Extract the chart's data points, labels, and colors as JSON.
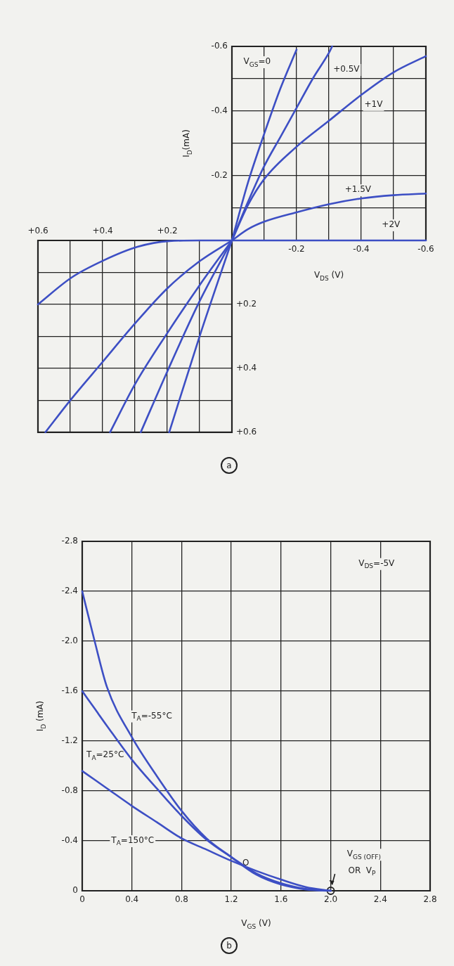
{
  "chart_data": [
    {
      "type": "line",
      "xlabel": "V$_{DS}$ (V)",
      "ylabel": "I$_{D}$(mA)",
      "xlim": [
        0,
        -0.6
      ],
      "ylim": [
        0,
        -0.6
      ],
      "xticks": [
        {
          "value": 0,
          "label": null
        },
        {
          "value": -0.1,
          "label": null
        },
        -0.2,
        {
          "value": -0.3,
          "label": null
        },
        -0.4,
        {
          "value": -0.5,
          "label": null
        },
        -0.6
      ],
      "yticks": [
        {
          "value": 0,
          "label": null
        },
        {
          "value": -0.1,
          "label": null
        },
        -0.2,
        {
          "value": -0.3,
          "label": null
        },
        -0.4,
        {
          "value": -0.5,
          "label": null
        },
        -0.6
      ],
      "grid": true,
      "legend": false,
      "marker": "none",
      "line_style": "solid",
      "series": [
        {
          "name": "V$_{GS}$=0",
          "color": "#3d4fc4",
          "x": [
            0,
            -0.05,
            -0.1,
            -0.15,
            -0.2
          ],
          "values": [
            0,
            -0.18,
            -0.33,
            -0.47,
            -0.59
          ]
        },
        {
          "name": "+0.5V",
          "color": "#3d4fc4",
          "x": [
            0,
            -0.05,
            -0.1,
            -0.15,
            -0.2,
            -0.25,
            -0.3,
            -0.31
          ],
          "values": [
            0,
            -0.12,
            -0.23,
            -0.32,
            -0.41,
            -0.5,
            -0.58,
            -0.6
          ]
        },
        {
          "name": "+1V",
          "color": "#3d4fc4",
          "x": [
            0,
            -0.05,
            -0.1,
            -0.2,
            -0.3,
            -0.4,
            -0.5,
            -0.6
          ],
          "values": [
            0,
            -0.11,
            -0.19,
            -0.29,
            -0.37,
            -0.45,
            -0.52,
            -0.57
          ]
        },
        {
          "name": "+1.5V",
          "color": "#3d4fc4",
          "x": [
            0,
            -0.05,
            -0.1,
            -0.2,
            -0.3,
            -0.4,
            -0.5,
            -0.6
          ],
          "values": [
            0,
            -0.035,
            -0.058,
            -0.087,
            -0.112,
            -0.13,
            -0.14,
            -0.145
          ]
        },
        {
          "name": "+2V",
          "color": "#3d4fc4",
          "x": [
            0,
            -0.6
          ],
          "values": [
            0,
            0
          ]
        }
      ]
    },
    {
      "type": "line",
      "xlim": [
        0.6,
        0
      ],
      "ylim": [
        0.6,
        0
      ],
      "xticks": [
        {
          "value": 0.6,
          "label": "+0.6"
        },
        {
          "value": 0.5,
          "label": null
        },
        {
          "value": 0.4,
          "label": "+0.4"
        },
        {
          "value": 0.3,
          "label": null
        },
        {
          "value": 0.2,
          "label": "+0.2"
        },
        {
          "value": 0.1,
          "label": null
        },
        {
          "value": 0,
          "label": null
        }
      ],
      "yticks": [
        {
          "value": 0,
          "label": null
        },
        {
          "value": 0.1,
          "label": null
        },
        {
          "value": 0.2,
          "label": "+0.2"
        },
        {
          "value": 0.3,
          "label": null
        },
        {
          "value": 0.4,
          "label": "+0.4"
        },
        {
          "value": 0.5,
          "label": null
        },
        {
          "value": 0.6,
          "label": "+0.6"
        }
      ],
      "grid": true,
      "legend": false,
      "marker": "none",
      "line_style": "solid",
      "series": [
        {
          "color": "#3d4fc4",
          "x": [
            0,
            0.1,
            0.194
          ],
          "values": [
            0,
            0.3,
            0.6
          ]
        },
        {
          "color": "#3d4fc4",
          "x": [
            0,
            0.1,
            0.2,
            0.282
          ],
          "values": [
            0,
            0.19,
            0.41,
            0.6
          ]
        },
        {
          "color": "#3d4fc4",
          "x": [
            0,
            0.1,
            0.2,
            0.3,
            0.377
          ],
          "values": [
            0,
            0.14,
            0.29,
            0.45,
            0.6
          ]
        },
        {
          "color": "#3d4fc4",
          "x": [
            0,
            0.1,
            0.2,
            0.3,
            0.4,
            0.5,
            0.577
          ],
          "values": [
            0,
            0.065,
            0.15,
            0.26,
            0.38,
            0.5,
            0.6
          ]
        },
        {
          "color": "#3d4fc4",
          "x": [
            0,
            0.1,
            0.194,
            0.292,
            0.398,
            0.496,
            0.6
          ],
          "values": [
            0,
            0,
            0.002,
            0.02,
            0.063,
            0.116,
            0.2
          ]
        }
      ],
      "annotations": [
        "a"
      ]
    },
    {
      "type": "line",
      "xlabel": "V$_{GS}$ (V)",
      "ylabel": "I$_{D}$ (mA)",
      "xlim": [
        0,
        2.8
      ],
      "ylim": [
        0,
        -2.8
      ],
      "xticks": [
        0,
        0.4,
        0.8,
        1.2,
        1.6,
        {
          "value": 2,
          "label": "2.0"
        },
        2.4,
        2.8
      ],
      "yticks": [
        0,
        -0.4,
        -0.8,
        -1.2,
        -1.6,
        {
          "value": -2,
          "label": "-2.0"
        },
        -2.4,
        -2.8
      ],
      "grid": true,
      "legend": false,
      "marker": "none",
      "line_style": "solid",
      "series": [
        {
          "name": "T$_{A}$=-55°C",
          "color": "#3d4fc4",
          "x": [
            0,
            0.1,
            0.2,
            0.4,
            0.6,
            0.8,
            1.0,
            1.2,
            1.4,
            1.6,
            1.8,
            2.0
          ],
          "values": [
            -2.4,
            -2.0,
            -1.63,
            -1.23,
            -0.92,
            -0.64,
            -0.42,
            -0.27,
            -0.13,
            -0.05,
            -0.01,
            0
          ]
        },
        {
          "name": "T$_{A}$=25°C",
          "color": "#3d4fc4",
          "x": [
            0,
            0.1,
            0.2,
            0.4,
            0.6,
            0.8,
            1.0,
            1.2,
            1.4,
            1.6,
            1.8,
            2.0
          ],
          "values": [
            -1.6,
            -1.46,
            -1.32,
            -1.05,
            -0.82,
            -0.6,
            -0.41,
            -0.27,
            -0.14,
            -0.06,
            -0.015,
            0
          ]
        },
        {
          "name": "T$_{A}$=150°C",
          "color": "#3d4fc4",
          "x": [
            0,
            0.1,
            0.2,
            0.4,
            0.6,
            0.8,
            1.0,
            1.2,
            1.4,
            1.6,
            1.8,
            2.0
          ],
          "values": [
            -0.96,
            -0.89,
            -0.82,
            -0.68,
            -0.55,
            -0.42,
            -0.33,
            -0.24,
            -0.16,
            -0.09,
            -0.03,
            0
          ]
        },
        {
          "type": "scatter",
          "color": "#222222",
          "marker": "circle",
          "x": [
            2.0
          ],
          "values": [
            0
          ]
        }
      ],
      "annotations": [
        "V$_{DS}$=-5V",
        "O",
        "V$_{GS (OFF)}$",
        "OR  V$_{P}$",
        "b"
      ]
    }
  ]
}
